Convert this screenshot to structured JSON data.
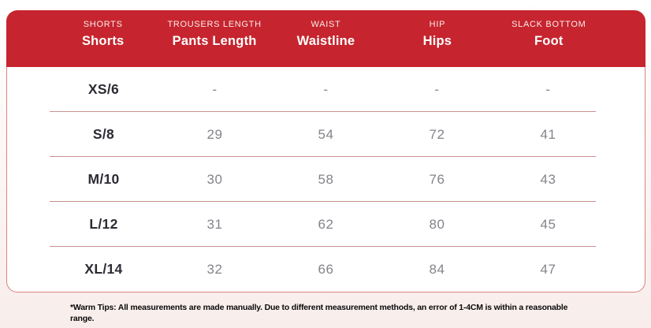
{
  "chart_data": {
    "type": "table",
    "columns": [
      {
        "label_top": "SHORTS",
        "label_main": "Shorts"
      },
      {
        "label_top": "TROUSERS LENGTH",
        "label_main": "Pants Length"
      },
      {
        "label_top": "WAIST",
        "label_main": "Waistline"
      },
      {
        "label_top": "HIP",
        "label_main": "Hips"
      },
      {
        "label_top": "SLACK BOTTOM",
        "label_main": "Foot"
      }
    ],
    "rows": [
      [
        "XS/6",
        "-",
        "-",
        "-",
        "-"
      ],
      [
        "S/8",
        "29",
        "54",
        "72",
        "41"
      ],
      [
        "M/10",
        "30",
        "58",
        "76",
        "43"
      ],
      [
        "L/12",
        "31",
        "62",
        "80",
        "45"
      ],
      [
        "XL/14",
        "32",
        "66",
        "84",
        "47"
      ]
    ]
  },
  "footnote": "*Warm Tips: All measurements are made manually. Due to different measurement methods, an error of 1-4CM is within a reasonable range.",
  "colors": {
    "header_red": "#c6242e",
    "header_text": "#ffffff",
    "body_border": "#d9837d",
    "row_separator": "#c9918d",
    "size_text": "#2b2b33",
    "value_text": "#83838b",
    "page_background": "#faf1ef"
  }
}
